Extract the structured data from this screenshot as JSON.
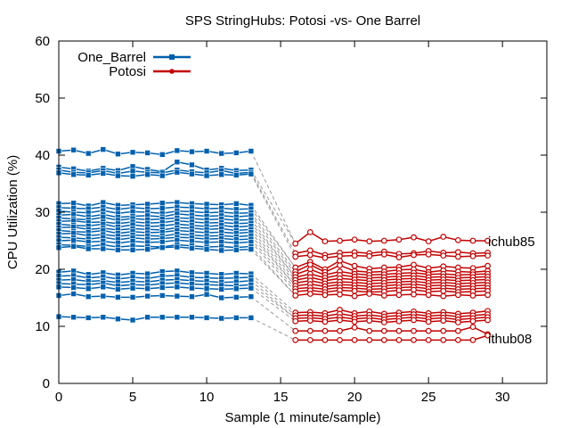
{
  "chart_data": {
    "type": "line",
    "title": "SPS StringHubs: Potosi -vs- One Barrel",
    "xlabel": "Sample (1 minute/sample)",
    "ylabel": "CPU Utilization (%)",
    "xlim": [
      0,
      33
    ],
    "ylim": [
      0,
      60
    ],
    "xticks": [
      0,
      5,
      10,
      15,
      20,
      25,
      30
    ],
    "yticks": [
      0,
      10,
      20,
      30,
      40,
      50,
      60
    ],
    "grid": false,
    "legend_position": "top-left",
    "colors": {
      "One_Barrel": "#0060ad",
      "Potosi": "#c30000",
      "connector": "#999999"
    },
    "legend": [
      {
        "name": "One_Barrel",
        "marker": "square"
      },
      {
        "name": "Potosi",
        "marker": "circle"
      }
    ],
    "annotations": [
      {
        "text": "ichub85",
        "x": 29,
        "y": 25.0
      },
      {
        "text": "ithub08",
        "x": 29,
        "y": 7.6
      }
    ],
    "groups": [
      {
        "name": "One_Barrel",
        "x": [
          0,
          1,
          2,
          3,
          4,
          5,
          6,
          7,
          8,
          9,
          10,
          11,
          12,
          13
        ],
        "series": [
          [
            40.7,
            40.9,
            40.3,
            41.0,
            40.2,
            40.5,
            40.4,
            40.1,
            40.8,
            40.6,
            40.7,
            40.3,
            40.4,
            40.7
          ],
          [
            37.9,
            37.6,
            37.2,
            37.7,
            37.3,
            38.0,
            37.5,
            37.1,
            38.8,
            38.3,
            37.4,
            37.7,
            37.3,
            37.4
          ],
          [
            37.4,
            37.0,
            36.9,
            37.3,
            36.8,
            37.2,
            37.0,
            36.9,
            37.4,
            37.1,
            36.9,
            37.3,
            36.8,
            37.0
          ],
          [
            36.9,
            36.6,
            36.5,
            36.8,
            36.4,
            36.3,
            36.6,
            36.4,
            37.0,
            36.7,
            36.4,
            36.6,
            36.5,
            36.7
          ],
          [
            31.5,
            31.6,
            31.1,
            31.7,
            31.2,
            31.3,
            31.4,
            31.6,
            31.7,
            31.5,
            31.4,
            31.3,
            31.5,
            31.2
          ],
          [
            30.8,
            30.7,
            30.6,
            30.9,
            30.5,
            30.8,
            30.6,
            30.7,
            30.9,
            30.8,
            30.6,
            30.7,
            30.5,
            30.6
          ],
          [
            30.2,
            30.0,
            29.9,
            30.3,
            29.8,
            30.1,
            30.0,
            29.8,
            30.2,
            30.1,
            29.9,
            30.0,
            29.8,
            29.9
          ],
          [
            29.5,
            29.6,
            29.2,
            29.6,
            29.1,
            29.3,
            29.4,
            29.2,
            29.7,
            29.5,
            29.3,
            29.4,
            29.2,
            29.4
          ],
          [
            29.0,
            28.8,
            28.7,
            29.1,
            28.6,
            28.9,
            28.7,
            28.8,
            29.0,
            28.9,
            28.7,
            28.8,
            28.6,
            28.7
          ],
          [
            28.4,
            28.5,
            28.2,
            28.3,
            28.0,
            28.3,
            28.1,
            28.2,
            28.5,
            28.3,
            28.1,
            28.2,
            28.0,
            28.1
          ],
          [
            27.9,
            27.7,
            27.6,
            27.9,
            27.4,
            27.8,
            27.5,
            27.6,
            27.9,
            27.7,
            27.5,
            27.7,
            27.4,
            27.6
          ],
          [
            27.3,
            27.4,
            27.0,
            27.2,
            26.9,
            27.1,
            27.0,
            26.9,
            27.3,
            27.2,
            27.0,
            27.1,
            26.8,
            27.0
          ],
          [
            26.8,
            26.6,
            26.5,
            26.8,
            26.3,
            26.6,
            26.4,
            26.5,
            26.8,
            26.6,
            26.4,
            26.5,
            26.3,
            26.5
          ],
          [
            26.2,
            26.3,
            25.9,
            26.1,
            25.8,
            26.0,
            25.9,
            25.8,
            26.2,
            26.0,
            25.8,
            25.9,
            25.7,
            25.9
          ],
          [
            25.6,
            25.5,
            25.3,
            25.6,
            25.2,
            25.5,
            25.3,
            25.4,
            25.6,
            25.5,
            25.3,
            25.4,
            25.2,
            25.3
          ],
          [
            25.0,
            25.1,
            24.8,
            24.9,
            24.6,
            24.9,
            24.7,
            24.8,
            25.1,
            24.9,
            24.7,
            24.8,
            24.6,
            24.8
          ],
          [
            24.3,
            24.2,
            24.0,
            24.3,
            23.9,
            24.1,
            24.0,
            23.9,
            24.3,
            24.1,
            23.9,
            24.0,
            23.8,
            24.0
          ],
          [
            23.8,
            24.0,
            23.6,
            23.6,
            23.4,
            23.4,
            23.5,
            23.8,
            23.9,
            23.7,
            23.5,
            23.3,
            23.4,
            23.5
          ],
          [
            19.5,
            19.7,
            19.1,
            19.4,
            19.0,
            19.3,
            19.2,
            19.6,
            19.7,
            19.4,
            19.3,
            19.1,
            19.3,
            19.2
          ],
          [
            18.8,
            18.9,
            18.5,
            18.7,
            18.3,
            18.6,
            18.4,
            18.8,
            18.9,
            18.6,
            18.5,
            18.4,
            18.5,
            18.6
          ],
          [
            18.1,
            18.2,
            17.9,
            18.0,
            17.7,
            17.9,
            17.8,
            18.1,
            18.2,
            18.0,
            17.9,
            17.7,
            17.8,
            18.0
          ],
          [
            17.5,
            17.4,
            17.3,
            17.6,
            17.1,
            17.3,
            17.2,
            17.5,
            17.6,
            17.4,
            17.3,
            17.2,
            17.1,
            17.3
          ],
          [
            16.9,
            16.8,
            16.6,
            16.9,
            16.5,
            16.7,
            16.6,
            16.8,
            16.9,
            16.7,
            16.6,
            16.5,
            16.6,
            16.7
          ],
          [
            15.4,
            15.7,
            15.2,
            15.3,
            15.1,
            15.1,
            15.3,
            15.4,
            15.3,
            15.2,
            15.6,
            15.0,
            15.1,
            15.2
          ],
          [
            11.7,
            11.6,
            11.5,
            11.6,
            11.3,
            11.1,
            11.6,
            11.6,
            11.6,
            11.6,
            11.5,
            11.4,
            11.5,
            11.5
          ]
        ]
      },
      {
        "name": "Potosi",
        "x": [
          16,
          17,
          18,
          19,
          20,
          21,
          22,
          23,
          24,
          25,
          26,
          27,
          28,
          29
        ],
        "series": [
          [
            24.5,
            26.5,
            24.9,
            25.0,
            25.2,
            24.9,
            25.0,
            25.2,
            25.6,
            24.9,
            25.7,
            25.1,
            25.0,
            25.0
          ],
          [
            22.8,
            23.3,
            22.5,
            22.9,
            23.0,
            22.8,
            23.1,
            22.7,
            22.8,
            23.2,
            22.9,
            23.0,
            22.8,
            22.9
          ],
          [
            22.2,
            22.5,
            22.0,
            22.3,
            22.4,
            22.3,
            22.6,
            22.1,
            22.5,
            22.6,
            22.4,
            22.2,
            22.3,
            22.4
          ],
          [
            20.3,
            21.3,
            20.0,
            21.5,
            20.6,
            20.1,
            20.3,
            20.4,
            20.8,
            20.2,
            20.5,
            20.3,
            20.2,
            20.6
          ],
          [
            19.6,
            20.8,
            19.5,
            20.7,
            19.7,
            19.5,
            19.6,
            19.9,
            20.0,
            19.5,
            19.8,
            19.6,
            19.5,
            19.7
          ],
          [
            19.1,
            20.0,
            19.0,
            19.6,
            19.2,
            19.0,
            19.1,
            19.3,
            19.4,
            19.1,
            19.2,
            19.0,
            19.1,
            19.2
          ],
          [
            18.6,
            19.2,
            18.5,
            19.0,
            18.7,
            18.5,
            18.6,
            18.8,
            18.9,
            18.6,
            18.7,
            18.5,
            18.6,
            18.7
          ],
          [
            18.1,
            18.6,
            18.0,
            18.4,
            18.2,
            18.0,
            18.1,
            18.3,
            18.4,
            18.1,
            18.2,
            18.0,
            18.1,
            18.2
          ],
          [
            17.6,
            18.0,
            17.5,
            17.8,
            17.7,
            17.5,
            17.6,
            17.8,
            17.9,
            17.6,
            17.7,
            17.5,
            17.6,
            17.7
          ],
          [
            17.1,
            17.4,
            17.0,
            17.3,
            17.2,
            17.0,
            17.1,
            17.3,
            17.4,
            17.1,
            17.2,
            17.0,
            17.1,
            17.2
          ],
          [
            16.6,
            16.8,
            16.5,
            16.8,
            16.7,
            16.5,
            16.6,
            16.8,
            16.9,
            16.6,
            16.7,
            16.5,
            16.6,
            16.7
          ],
          [
            16.1,
            16.3,
            16.0,
            16.3,
            16.2,
            16.0,
            16.1,
            16.3,
            16.4,
            16.1,
            16.2,
            16.0,
            16.1,
            16.2
          ],
          [
            15.4,
            15.7,
            15.5,
            15.6,
            15.3,
            15.7,
            15.4,
            15.5,
            15.6,
            15.5,
            15.3,
            15.5,
            15.4,
            15.5
          ],
          [
            12.4,
            12.5,
            12.3,
            12.9,
            12.3,
            12.6,
            12.2,
            12.4,
            12.6,
            12.3,
            12.5,
            12.2,
            12.4,
            12.7
          ],
          [
            11.9,
            12.0,
            11.8,
            12.2,
            11.8,
            12.0,
            11.7,
            11.9,
            12.1,
            11.8,
            12.0,
            11.7,
            11.9,
            12.1
          ],
          [
            11.4,
            11.5,
            11.3,
            11.6,
            11.3,
            11.5,
            11.2,
            11.4,
            11.6,
            11.3,
            11.5,
            11.2,
            11.4,
            11.6
          ],
          [
            10.9,
            11.0,
            10.8,
            11.1,
            10.8,
            11.0,
            10.7,
            10.9,
            11.1,
            10.8,
            11.0,
            10.7,
            10.9,
            11.1
          ],
          [
            9.2,
            9.2,
            9.2,
            9.2,
            9.8,
            9.2,
            9.2,
            9.2,
            9.2,
            9.2,
            9.2,
            9.2,
            9.9,
            8.6
          ],
          [
            7.6,
            7.6,
            7.6,
            7.6,
            7.6,
            7.6,
            7.6,
            7.6,
            7.6,
            7.6,
            7.6,
            7.6,
            7.6,
            8.4
          ]
        ]
      }
    ]
  }
}
